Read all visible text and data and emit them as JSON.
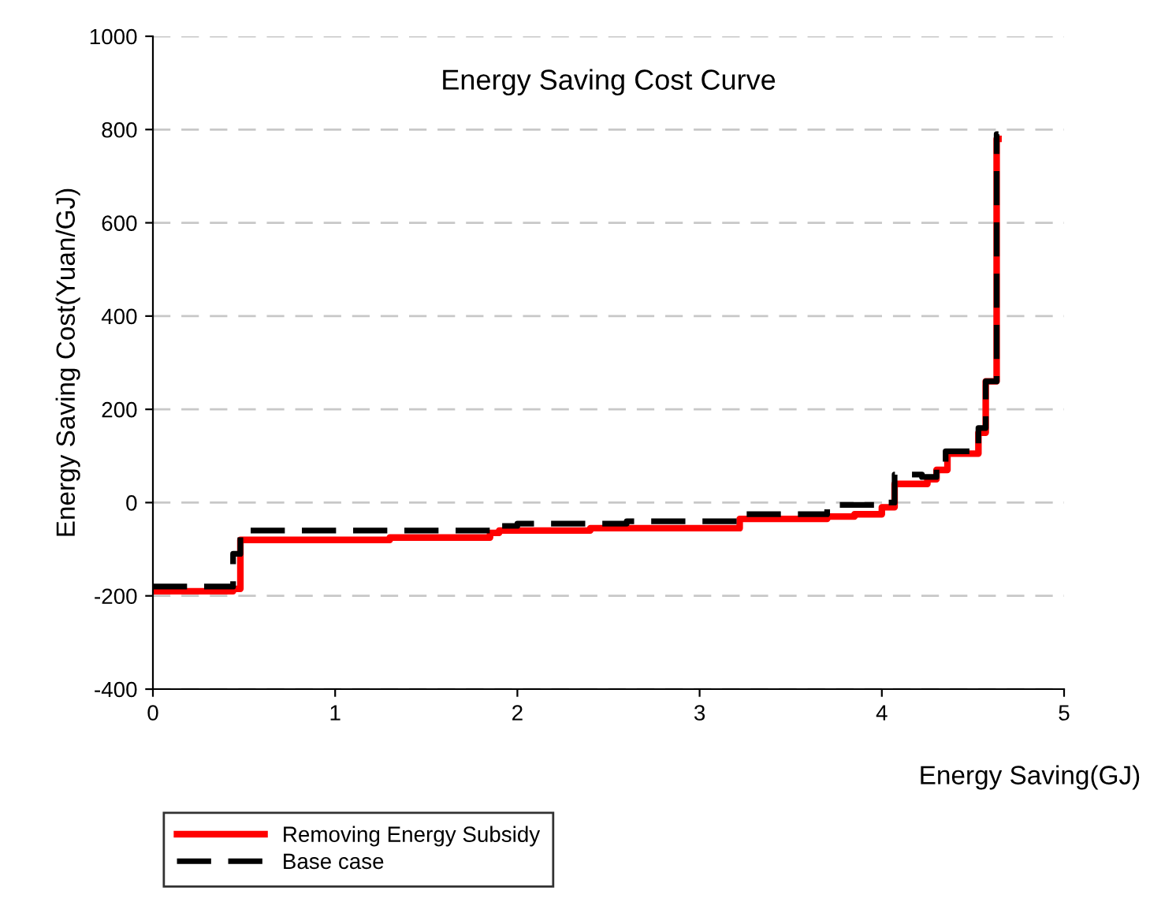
{
  "chart_data": {
    "type": "step",
    "title": "Energy Saving Cost Curve",
    "xlabel": "Energy Saving(GJ)",
    "ylabel": "Energy Saving Cost(Yuan/GJ)",
    "xlim": [
      0,
      5
    ],
    "xticks": [
      0,
      1,
      2,
      3,
      4,
      5
    ],
    "ylim": [
      -400,
      1000
    ],
    "yticks": [
      -400,
      -200,
      0,
      200,
      400,
      600,
      800,
      1000
    ],
    "grid": "y",
    "legend": "bottom",
    "series": [
      {
        "name": "Removing Energy Subsidy",
        "color": "#ff0000",
        "line_style": "solid",
        "x": [
          0,
          0.44,
          0.48,
          1.3,
          1.85,
          1.9,
          2.4,
          3.22,
          3.7,
          3.85,
          4.0,
          4.07,
          4.25,
          4.3,
          4.36,
          4.53,
          4.57,
          4.63,
          4.64
        ],
        "values": [
          -190,
          -185,
          -80,
          -75,
          -65,
          -60,
          -55,
          -35,
          -30,
          -25,
          -10,
          40,
          50,
          70,
          105,
          150,
          260,
          780,
          780
        ]
      },
      {
        "name": "Base case",
        "color": "#000000",
        "line_style": "dashed",
        "x": [
          0,
          0.44,
          0.48,
          1.85,
          2.0,
          2.6,
          3.22,
          3.7,
          4.0,
          4.07,
          4.22,
          4.3,
          4.35,
          4.53,
          4.57,
          4.63,
          4.64
        ],
        "values": [
          -180,
          -110,
          -60,
          -50,
          -45,
          -40,
          -25,
          -5,
          0,
          60,
          55,
          80,
          110,
          160,
          260,
          790,
          790
        ]
      }
    ]
  }
}
